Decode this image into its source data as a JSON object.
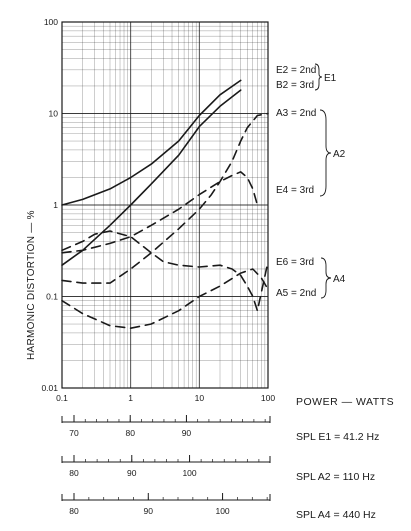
{
  "chart_data": {
    "type": "line",
    "x_scale": "log",
    "y_scale": "log",
    "xlim": [
      0.1,
      100
    ],
    "ylim": [
      0.01,
      100
    ],
    "ylabel": "HARMONIC DISTORTION — %",
    "xlabel": "POWER — WATTS",
    "x_ticks": [
      "0.1",
      "1",
      "10",
      "100"
    ],
    "y_ticks": [
      "0.01",
      "0.1",
      "1",
      "10",
      "100"
    ],
    "grid": true,
    "series": [
      {
        "name": "E2 = 2nd",
        "style": "solid",
        "x": [
          0.1,
          0.2,
          0.5,
          1,
          2,
          5,
          10,
          20,
          40
        ],
        "y": [
          1.0,
          1.15,
          1.5,
          2.0,
          2.8,
          5.0,
          9.5,
          16,
          23
        ]
      },
      {
        "name": "B2 = 3rd",
        "style": "solid",
        "x": [
          0.1,
          0.2,
          0.5,
          1,
          2,
          5,
          10,
          20,
          40
        ],
        "y": [
          0.22,
          0.32,
          0.6,
          1.0,
          1.7,
          3.5,
          7.2,
          12,
          18
        ]
      },
      {
        "name": "A3 = 2nd",
        "style": "dashed",
        "x": [
          0.1,
          0.2,
          0.5,
          1,
          2,
          5,
          10,
          15,
          20,
          30,
          40,
          50,
          70,
          100
        ],
        "y": [
          0.15,
          0.14,
          0.14,
          0.2,
          0.3,
          0.55,
          0.9,
          1.3,
          1.8,
          3.0,
          5.0,
          7.0,
          9.5,
          10
        ]
      },
      {
        "name": "E4 = 3rd",
        "style": "dashed",
        "x": [
          0.1,
          0.2,
          0.5,
          1,
          2,
          5,
          10,
          20,
          30,
          40,
          50,
          60,
          70
        ],
        "y": [
          0.3,
          0.32,
          0.38,
          0.45,
          0.6,
          0.9,
          1.3,
          1.8,
          2.1,
          2.3,
          2.0,
          1.5,
          1.0
        ]
      },
      {
        "name": "E6 = 3rd",
        "style": "dashed",
        "x": [
          0.1,
          0.2,
          0.3,
          0.5,
          1,
          2,
          3,
          5,
          10,
          20,
          30,
          40,
          50,
          60,
          70,
          100
        ],
        "y": [
          0.32,
          0.4,
          0.48,
          0.52,
          0.45,
          0.3,
          0.24,
          0.22,
          0.21,
          0.22,
          0.2,
          0.17,
          0.13,
          0.1,
          0.07,
          0.24
        ]
      },
      {
        "name": "A5 = 2nd",
        "style": "dashed",
        "x": [
          0.1,
          0.2,
          0.5,
          1,
          2,
          5,
          10,
          20,
          40,
          60,
          80,
          100
        ],
        "y": [
          0.09,
          0.065,
          0.048,
          0.045,
          0.05,
          0.07,
          0.1,
          0.13,
          0.18,
          0.2,
          0.16,
          0.12
        ]
      }
    ],
    "annotations": {
      "e1_group": {
        "lines": [
          "E2 = 2nd",
          "B2 = 3rd"
        ],
        "brace_label": "E1"
      },
      "a2_group": {
        "lines": [
          "A3 = 2nd",
          "E4 = 3rd"
        ],
        "brace_label": "A2"
      },
      "a4_group": {
        "lines": [
          "E6 = 3rd",
          "A5 = 2nd"
        ],
        "brace_label": "A4"
      }
    },
    "spl_scales": [
      {
        "label": "SPL E1 = 41.2 Hz",
        "ticks": [
          "70",
          "80",
          "90"
        ]
      },
      {
        "label": "SPL A2 = 110 Hz",
        "ticks": [
          "80",
          "90",
          "100"
        ]
      },
      {
        "label": "SPL A4 = 440 Hz",
        "ticks": [
          "80",
          "90",
          "100"
        ]
      }
    ]
  }
}
